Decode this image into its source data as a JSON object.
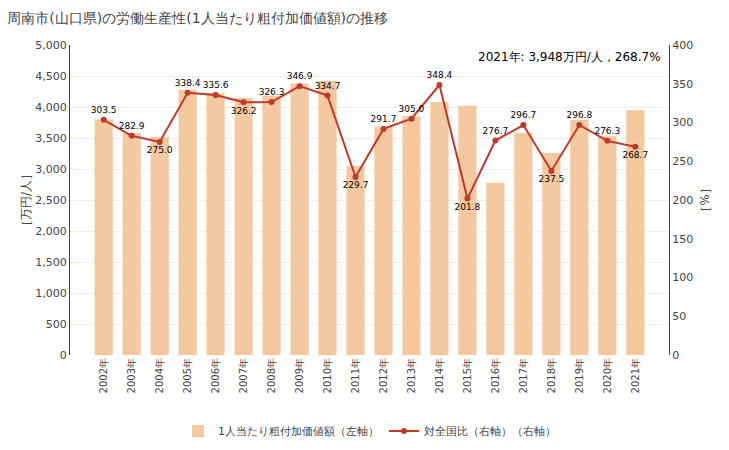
{
  "chart_data": {
    "type": "bar",
    "title": "周南市(山口県)の労働生産性(1人当たり粗付加価値額)の推移",
    "annotation": "2021年: 3,948万円/人，268.7%",
    "ylabel_left": "［万円/人］",
    "ylabel_right": "［%］",
    "categories": [
      "2002年",
      "2003年",
      "2004年",
      "2005年",
      "2006年",
      "2007年",
      "2008年",
      "2009年",
      "2010年",
      "2011年",
      "2012年",
      "2013年",
      "2014年",
      "2015年",
      "2016年",
      "2017年",
      "2018年",
      "2019年",
      "2020年",
      "2021年"
    ],
    "series": [
      {
        "name": "1人当たり粗付加価値額（左軸）",
        "type": "bar",
        "color": "#F5C9A0",
        "values": [
          3800,
          3580,
          3520,
          4280,
          4220,
          4150,
          4180,
          4380,
          4420,
          3050,
          3680,
          3850,
          4080,
          4020,
          2780,
          3580,
          3260,
          3790,
          3530,
          3948
        ]
      },
      {
        "name": "対全国比（右軸）（右軸）",
        "type": "line",
        "axis": "y2",
        "color": "#C0392B",
        "marker": "circle",
        "data_labels": true,
        "values": [
          303.5,
          282.9,
          275.0,
          338.4,
          335.6,
          326.2,
          326.3,
          346.9,
          334.7,
          229.7,
          291.7,
          305.0,
          348.4,
          201.8,
          276.7,
          296.7,
          237.5,
          296.8,
          276.3,
          268.7
        ],
        "value_labels": [
          "303.5",
          "282.9",
          "275.0",
          "338.4",
          "335.6",
          "326.2",
          "326.3",
          "346.9",
          "334.7",
          "229.7",
          "291.7",
          "305.0",
          "348.4",
          "201.8",
          "276.7",
          "296.7",
          "237.5",
          "296.8",
          "276.3",
          "268.7"
        ]
      }
    ],
    "ylim": [
      0,
      5000
    ],
    "yticks": [
      0,
      500,
      {
        "value": 1000,
        "label": "1,000"
      },
      {
        "value": 1500,
        "label": "1,500"
      },
      {
        "value": 2000,
        "label": "2,000"
      },
      {
        "value": 2500,
        "label": "2,500"
      },
      {
        "value": 3000,
        "label": "3,000"
      },
      {
        "value": 3500,
        "label": "3,500"
      },
      {
        "value": 4000,
        "label": "4,000"
      },
      {
        "value": 4500,
        "label": "4,500"
      },
      {
        "value": 5000,
        "label": "5,000"
      }
    ],
    "y2lim": [
      0,
      400
    ],
    "y2ticks": [
      0,
      50,
      100,
      150,
      200,
      250,
      300,
      350,
      400
    ],
    "grid": true,
    "legend": "bottom"
  }
}
